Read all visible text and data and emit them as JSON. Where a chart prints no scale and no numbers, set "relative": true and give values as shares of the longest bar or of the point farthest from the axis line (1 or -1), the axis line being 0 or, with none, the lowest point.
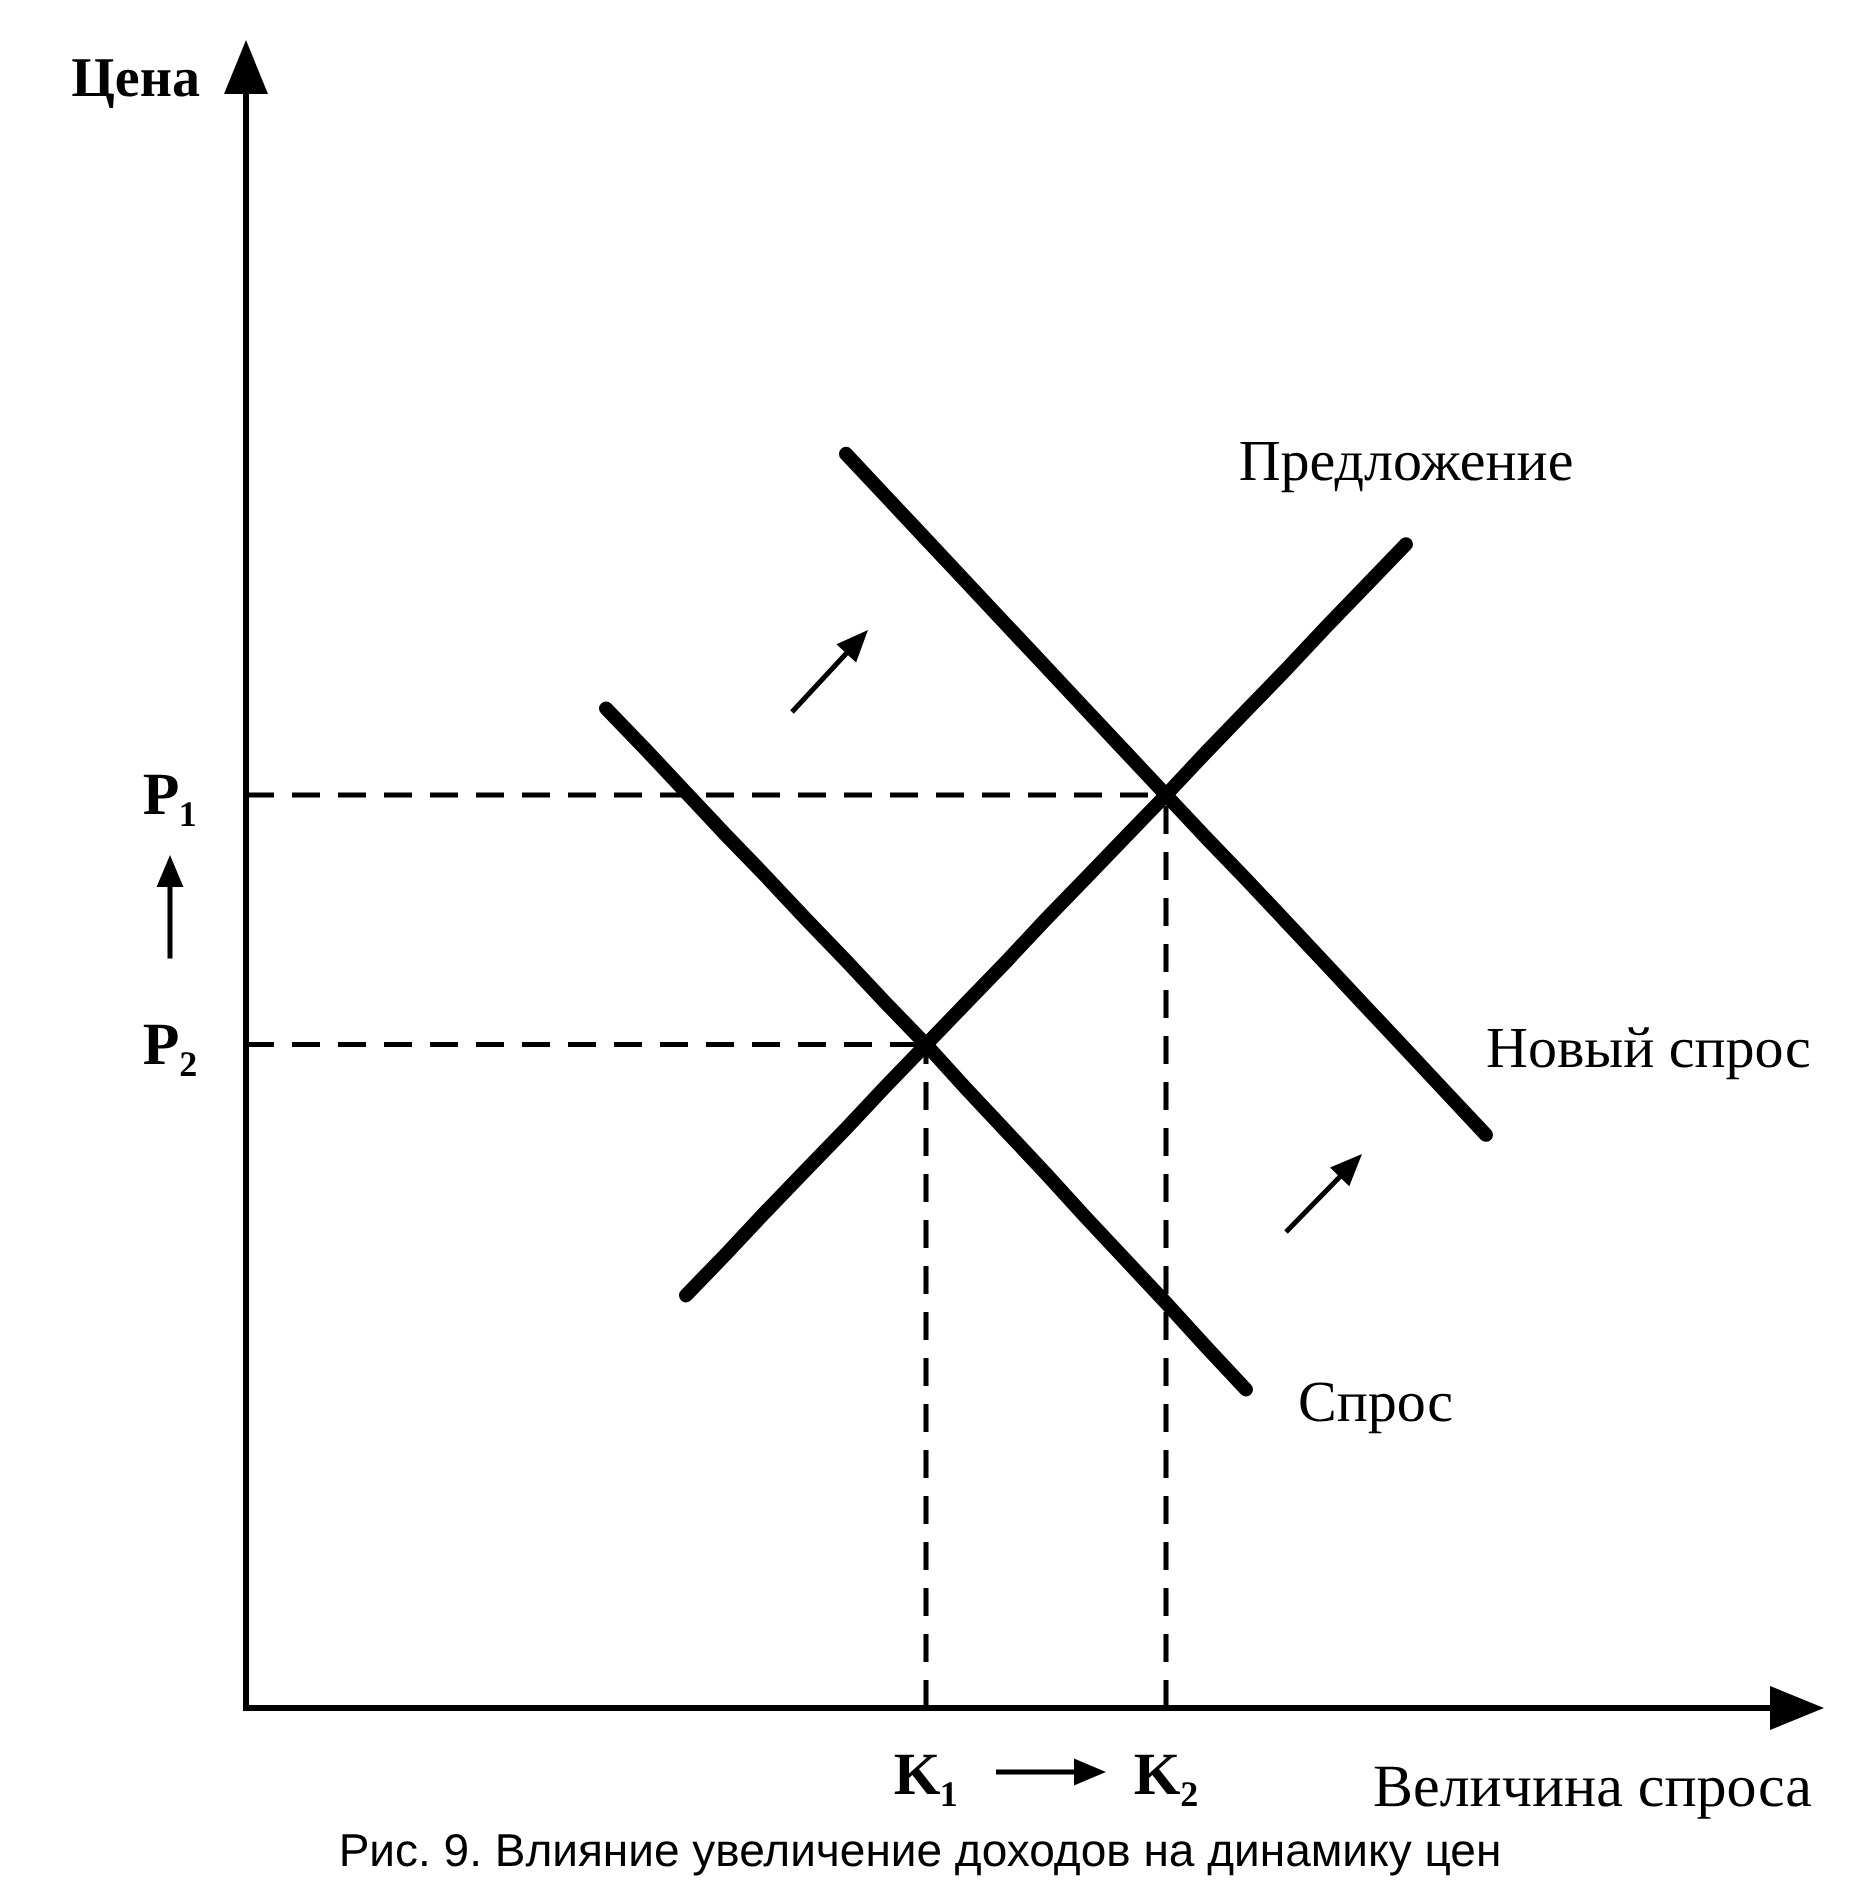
{
  "chart_data": {
    "type": "line",
    "relative": true,
    "xlabel": "Величина спроса",
    "categories": [
      null,
      null,
      null,
      null,
      null,
      null,
      null,
      null,
      null,
      null,
      null,
      null,
      null,
      null,
      null,
      null,
      null,
      "K₁",
      null,
      null,
      null,
      null,
      null,
      "K₂",
      null,
      null,
      null,
      null,
      null,
      null,
      null,
      null,
      null,
      null,
      null,
      null,
      null,
      null,
      null,
      null
    ],
    "series": [
      {
        "name": "Спрос",
        "color": "#000000",
        "values": [
          null,
          null,
          null,
          null,
          null,
          null,
          null,
          null,
          null,
          0.797,
          0.764,
          0.73,
          0.696,
          0.663,
          0.629,
          0.596,
          0.562,
          0.529,
          0.494,
          0.46,
          0.426,
          0.391,
          0.357,
          0.323,
          0.288,
          0.254,
          null,
          null,
          null,
          null,
          null,
          null,
          null,
          null,
          null,
          null,
          null,
          null,
          null,
          null
        ]
      },
      {
        "name": "Предложение",
        "color": "#000000",
        "values": [
          null,
          null,
          null,
          null,
          null,
          null,
          null,
          null,
          null,
          null,
          null,
          0.329,
          0.362,
          0.396,
          0.429,
          0.462,
          0.496,
          0.529,
          0.562,
          0.595,
          0.629,
          0.662,
          0.695,
          0.728,
          0.762,
          0.795,
          0.828,
          0.862,
          0.895,
          0.928,
          null,
          null,
          null,
          null,
          null,
          null,
          null,
          null,
          null,
          null
        ]
      },
      {
        "name": "Новый спрос",
        "color": "#000000",
        "values": [
          null,
          null,
          null,
          null,
          null,
          null,
          null,
          null,
          null,
          null,
          null,
          null,
          null,
          null,
          null,
          1.0,
          0.966,
          0.932,
          0.898,
          0.864,
          0.83,
          0.796,
          0.762,
          0.728,
          0.694,
          0.661,
          0.627,
          0.593,
          0.559,
          0.525,
          0.491,
          0.457,
          null,
          null,
          null,
          null,
          null,
          null,
          null,
          null
        ]
      },
      {
        "name": "P₁",
        "color": "#000000",
        "line_style": "dashed",
        "values": [
          0.728,
          0.728,
          0.728,
          0.728,
          0.728,
          0.728,
          0.728,
          0.728,
          0.728,
          0.728,
          0.728,
          0.728,
          0.728,
          0.728,
          0.728,
          0.728,
          0.728,
          0.728,
          0.728,
          0.728,
          0.728,
          0.728,
          0.728,
          0.728,
          null,
          null,
          null,
          null,
          null,
          null,
          null,
          null,
          null,
          null,
          null,
          null,
          null,
          null,
          null,
          null
        ]
      },
      {
        "name": "P₂",
        "color": "#000000",
        "line_style": "dashed",
        "values": [
          0.529,
          0.529,
          0.529,
          0.529,
          0.529,
          0.529,
          0.529,
          0.529,
          0.529,
          0.529,
          0.529,
          0.529,
          0.529,
          0.529,
          0.529,
          0.529,
          0.529,
          0.529,
          null,
          null,
          null,
          null,
          null,
          null,
          null,
          null,
          null,
          null,
          null,
          null,
          null,
          null,
          null,
          null,
          null,
          null,
          null,
          null,
          null,
          null
        ]
      },
      {
        "color": "#000000",
        "line_style": "dashed",
        "x": [
          "K₁",
          "K₁"
        ],
        "values": [
          0,
          0.529
        ]
      },
      {
        "color": "#000000",
        "line_style": "dashed",
        "x": [
          "K₂",
          "K₂"
        ],
        "values": [
          0,
          0.728
        ]
      }
    ],
    "annotations": [
      "Цена",
      "Рис. 9. Влияние увеличение доходов на динамику цен"
    ]
  }
}
